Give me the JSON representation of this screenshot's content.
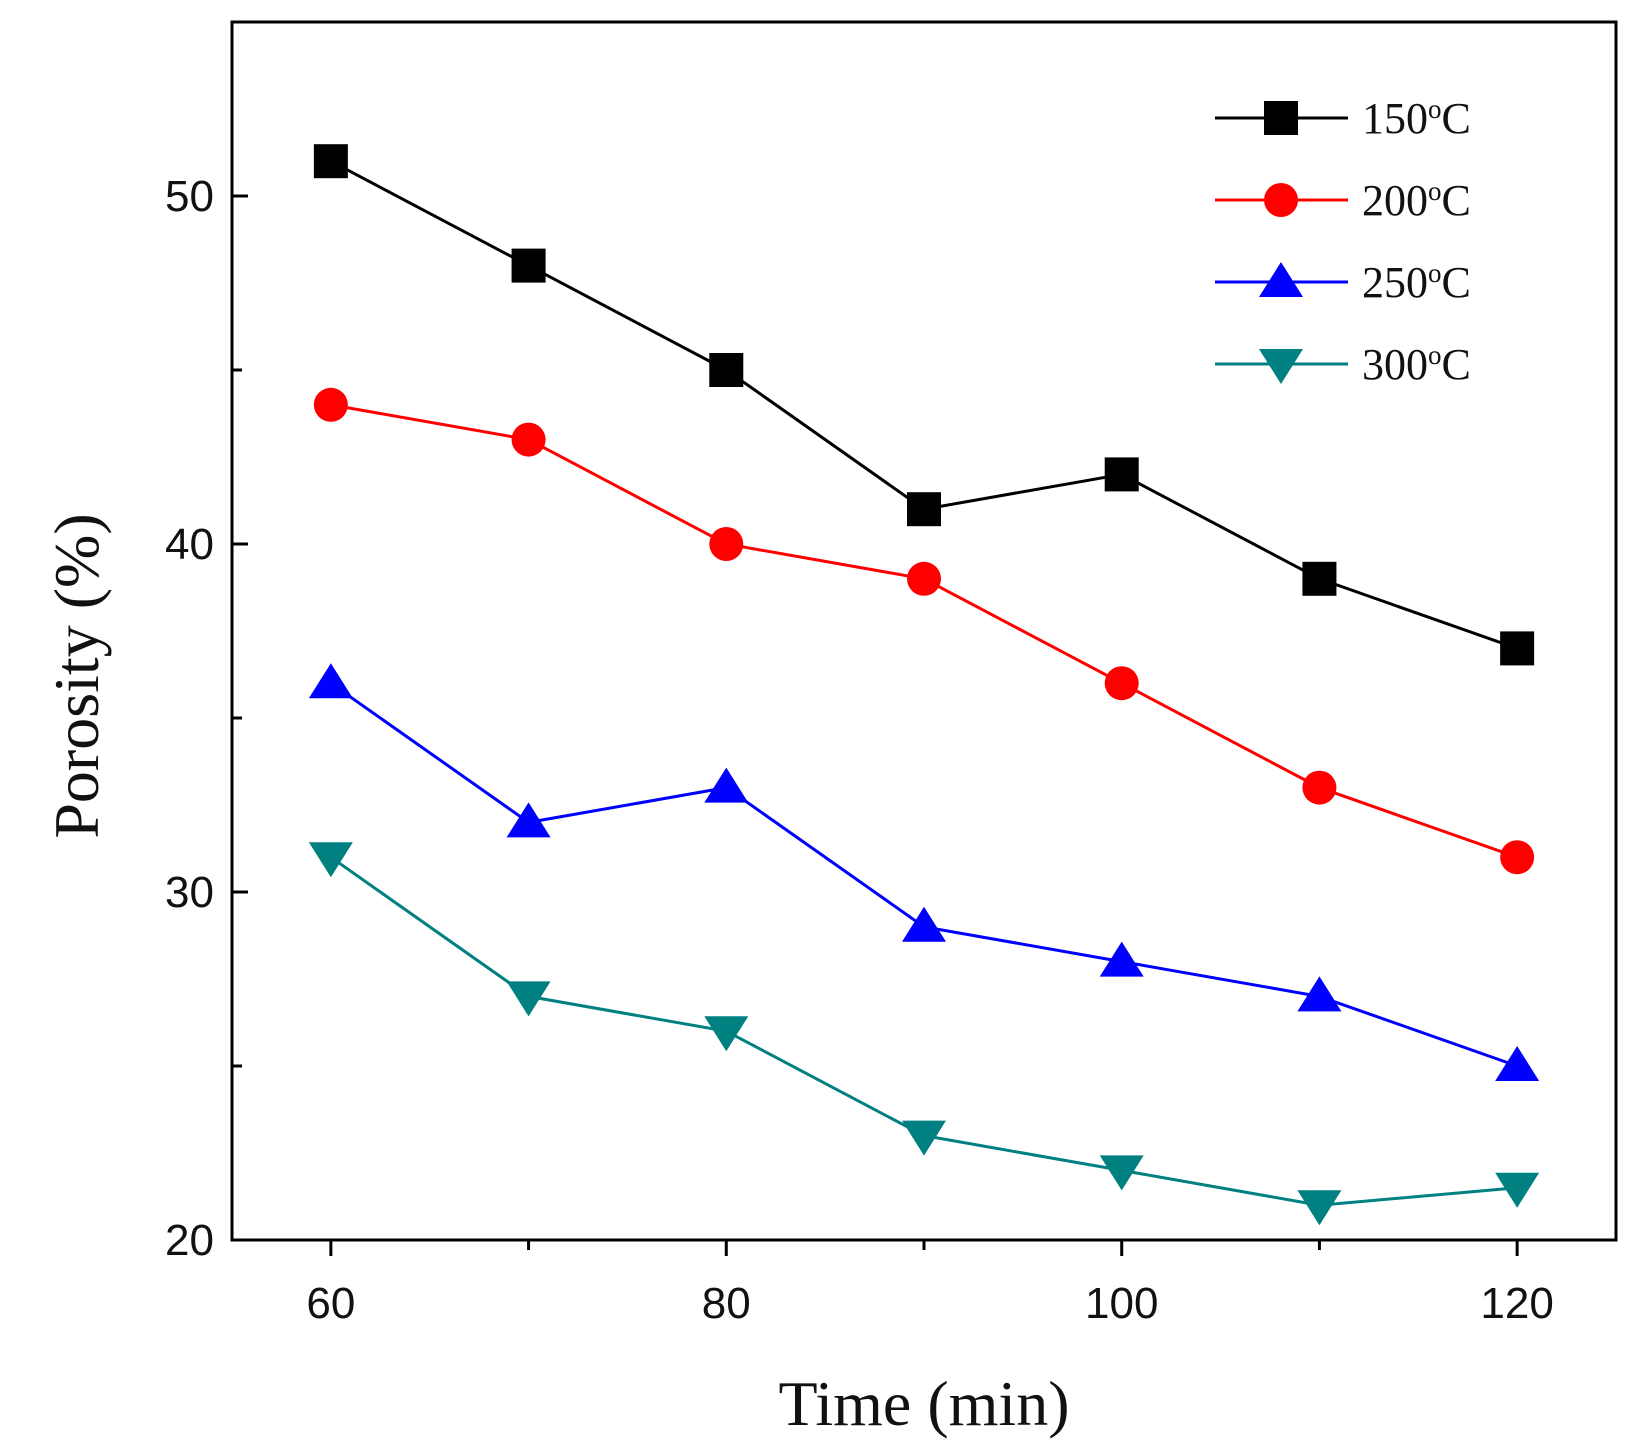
{
  "chart_data": {
    "type": "line",
    "title": "",
    "xlabel": "Time (min)",
    "ylabel": "Porosity (%)",
    "xlim": [
      55,
      125
    ],
    "ylim": [
      20,
      55
    ],
    "x_ticks": [
      60,
      80,
      100,
      120
    ],
    "y_ticks": [
      20,
      30,
      40,
      50
    ],
    "legend_placement": "top-right",
    "x": [
      60,
      70,
      80,
      90,
      100,
      110,
      120
    ],
    "series": [
      {
        "name": "150°C",
        "legend_value": "150",
        "legend_unit_sup": "o",
        "legend_unit": "C",
        "marker": "square",
        "color": "#000000",
        "values": [
          51,
          48,
          45,
          41,
          42,
          39,
          37
        ]
      },
      {
        "name": "200°C",
        "legend_value": "200",
        "legend_unit_sup": "o",
        "legend_unit": "C",
        "marker": "circle",
        "color": "#ff0000",
        "values": [
          44,
          43,
          40,
          39,
          36,
          33,
          31
        ]
      },
      {
        "name": "250°C",
        "legend_value": "250",
        "legend_unit_sup": "o",
        "legend_unit": "C",
        "marker": "triangle-up",
        "color": "#0000ff",
        "values": [
          36,
          32,
          33,
          29,
          28,
          27,
          25
        ]
      },
      {
        "name": "300°C",
        "legend_value": "300",
        "legend_unit_sup": "o",
        "legend_unit": "C",
        "marker": "triangle-down",
        "color": "#008080",
        "values": [
          31,
          27,
          26,
          23,
          22,
          21,
          21.5
        ]
      }
    ]
  }
}
